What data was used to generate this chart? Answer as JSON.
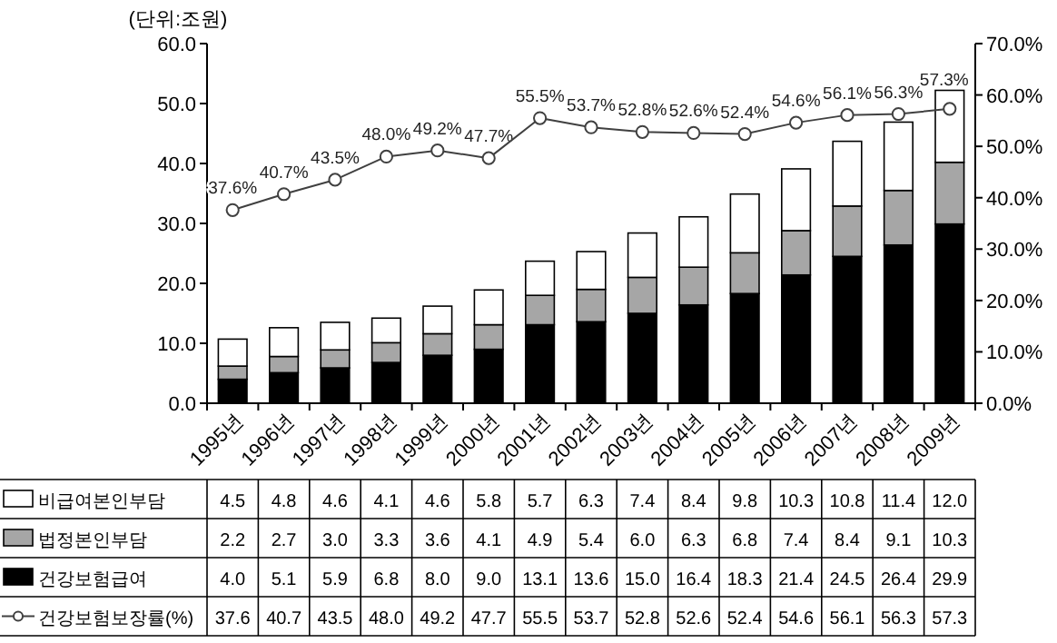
{
  "chart_data": {
    "type": "bar",
    "stacked": true,
    "ylabel": "(단위:조원)",
    "legend": "bottom",
    "annotations": [
      "37.6",
      "40.7",
      "43.5",
      "48.0",
      "49.2",
      "47.7",
      "55.5",
      "53.7",
      "52.8",
      "52.6",
      "52.4",
      "54.6",
      "56.1",
      "56.3",
      "57.3"
    ],
    "categories": [
      "1995년",
      "1996년",
      "1997년",
      "1998년",
      "1999년",
      "2000년",
      "2001년",
      "2002년",
      "2003년",
      "2004년",
      "2005년",
      "2006년",
      "2007년",
      "2008년",
      "2009년"
    ],
    "series": [
      {
        "name": "건강보험급여",
        "color": "#000000",
        "values": [
          4.0,
          5.1,
          5.9,
          6.8,
          8.0,
          9.0,
          13.1,
          13.6,
          15.0,
          16.4,
          18.3,
          21.4,
          24.5,
          26.4,
          29.9
        ],
        "value_labels": [
          "4.0",
          "5.1",
          "5.9",
          "6.8",
          "8.0",
          "9.0",
          "13.1",
          "13.6",
          "15.0",
          "16.4",
          "18.3",
          "21.4",
          "24.5",
          "26.4",
          "29.9"
        ]
      },
      {
        "name": "법정본인부담",
        "color": "#a6a6a6",
        "values": [
          2.2,
          2.7,
          3.0,
          3.3,
          3.6,
          4.1,
          4.9,
          5.4,
          6.0,
          6.3,
          6.8,
          7.4,
          8.4,
          9.1,
          10.3
        ],
        "value_labels": [
          "2.2",
          "2.7",
          "3.0",
          "3.3",
          "3.6",
          "4.1",
          "4.9",
          "5.4",
          "6.0",
          "6.3",
          "6.8",
          "7.4",
          "8.4",
          "9.1",
          "10.3"
        ]
      },
      {
        "name": "비급여본인부담",
        "color": "#ffffff",
        "values": [
          4.5,
          4.8,
          4.6,
          4.1,
          4.6,
          5.8,
          5.7,
          6.3,
          7.4,
          8.4,
          9.8,
          10.3,
          10.8,
          11.4,
          12.0
        ],
        "value_labels": [
          "4.5",
          "4.8",
          "4.6",
          "4.1",
          "4.6",
          "5.8",
          "5.7",
          "6.3",
          "7.4",
          "8.4",
          "9.8",
          "10.3",
          "10.8",
          "11.4",
          "12.0"
        ]
      },
      {
        "name": "건강보험보장률(%)",
        "type": "line",
        "axis": "y2",
        "marker": "circle",
        "color": "#404040",
        "values": [
          37.6,
          40.7,
          43.5,
          48.0,
          49.2,
          47.7,
          55.5,
          53.7,
          52.8,
          52.6,
          52.4,
          54.6,
          56.1,
          56.3,
          57.3
        ],
        "value_labels": [
          "37.6%",
          "40.7%",
          "43.5%",
          "48.0%",
          "49.2%",
          "47.7%",
          "55.5%",
          "53.7%",
          "52.8%",
          "52.6%",
          "52.4%",
          "54.6%",
          "56.1%",
          "56.3%",
          "57.3%"
        ]
      }
    ],
    "ylim": [
      0,
      60
    ],
    "yticks": [
      {
        "value": 0,
        "label": "0.0"
      },
      {
        "value": 10,
        "label": "10.0"
      },
      {
        "value": 20,
        "label": "20.0"
      },
      {
        "value": 30,
        "label": "30.0"
      },
      {
        "value": 40,
        "label": "40.0"
      },
      {
        "value": 50,
        "label": "50.0"
      },
      {
        "value": 60,
        "label": "60.0"
      }
    ],
    "y2lim": [
      0,
      70
    ],
    "y2ticks": [
      {
        "value": 0,
        "label": "0.0%"
      },
      {
        "value": 10,
        "label": "10.0%"
      },
      {
        "value": 20,
        "label": "20.0%"
      },
      {
        "value": 30,
        "label": "30.0%"
      },
      {
        "value": 40,
        "label": "40.0%"
      },
      {
        "value": 50,
        "label": "50.0%"
      },
      {
        "value": 60,
        "label": "60.0%"
      },
      {
        "value": 70,
        "label": "70.0%"
      }
    ]
  }
}
